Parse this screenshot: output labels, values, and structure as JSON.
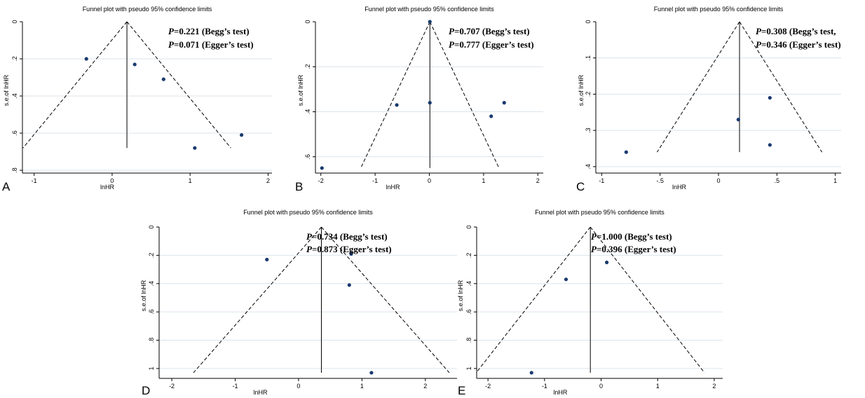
{
  "chart_data": [
    {
      "panel": "A",
      "type": "scatter",
      "title": "Funnel plot with pseudo 95% confidence limits",
      "xlabel": "lnHR",
      "ylabel": "s.e.of lnHR",
      "xlim": [
        -1.15,
        2.05
      ],
      "ylim": [
        0,
        0.8
      ],
      "y_reversed": true,
      "xticks": [
        -1,
        0,
        1,
        2
      ],
      "xtick_labels": [
        "-1",
        "0",
        "1",
        "2"
      ],
      "yticks": [
        0,
        0.2,
        0.4,
        0.6,
        0.8
      ],
      "ytick_labels": [
        "0",
        ".2",
        ".4",
        ".6",
        ".8"
      ],
      "pooled_estimate": 0.19,
      "funnel_se_max": 0.68,
      "points": [
        {
          "x": -0.33,
          "y": 0.2
        },
        {
          "x": 0.29,
          "y": 0.23
        },
        {
          "x": 0.66,
          "y": 0.31
        },
        {
          "x": 1.06,
          "y": 0.68
        },
        {
          "x": 1.66,
          "y": 0.61
        }
      ],
      "annotations": [
        {
          "p": "P",
          "text": "=0.221 (Begg’s test)"
        },
        {
          "p": "P",
          "text": "=0.071 (Egger’s test)"
        }
      ]
    },
    {
      "panel": "B",
      "type": "scatter",
      "title": "Funnel plot with pseudo 95% confidence limits",
      "xlabel": "lnHR",
      "ylabel": "s.e.of lnHR",
      "xlim": [
        -2.1,
        2.1
      ],
      "ylim": [
        0,
        0.66
      ],
      "y_reversed": true,
      "xticks": [
        -2,
        -1,
        0,
        1,
        2
      ],
      "xtick_labels": [
        "-2",
        "-1",
        "0",
        "1",
        "2"
      ],
      "yticks": [
        0,
        0.2,
        0.4,
        0.6
      ],
      "ytick_labels": [
        "0",
        ".2",
        ".4",
        ".6"
      ],
      "pooled_estimate": 0.01,
      "funnel_se_max": 0.65,
      "points": [
        {
          "x": 0.01,
          "y": 0.0
        },
        {
          "x": -0.6,
          "y": 0.37
        },
        {
          "x": 0.01,
          "y": 0.36
        },
        {
          "x": 1.14,
          "y": 0.42
        },
        {
          "x": 1.38,
          "y": 0.36
        },
        {
          "x": -1.98,
          "y": 0.65
        }
      ],
      "annotations": [
        {
          "p": "P",
          "text": "=0.707 (Begg’s test)"
        },
        {
          "p": "P",
          "text": "=0.777 (Egger’s test)"
        }
      ]
    },
    {
      "panel": "C",
      "type": "scatter",
      "title": "Funnel plot with pseudo 95% confidence limits",
      "xlabel": "lnHR",
      "ylabel": "s.e.of lnHR",
      "xlim": [
        -1.05,
        1.05
      ],
      "ylim": [
        0,
        0.41
      ],
      "y_reversed": true,
      "xticks": [
        -1,
        -0.5,
        0,
        0.5,
        1
      ],
      "xtick_labels": [
        "-1",
        "-.5",
        "0",
        ".5",
        "1"
      ],
      "yticks": [
        0,
        0.1,
        0.2,
        0.3,
        0.4
      ],
      "ytick_labels": [
        "0",
        ".1",
        ".2",
        ".3",
        ".4"
      ],
      "pooled_estimate": 0.18,
      "funnel_se_max": 0.36,
      "points": [
        {
          "x": 0.44,
          "y": 0.21
        },
        {
          "x": 0.17,
          "y": 0.27
        },
        {
          "x": 0.44,
          "y": 0.34
        },
        {
          "x": -0.79,
          "y": 0.36
        }
      ],
      "annotations": [
        {
          "p": "P",
          "text": "=0.308 (Begg’s test,"
        },
        {
          "p": "P",
          "text": "=0.346 (Egger’s test)"
        }
      ]
    },
    {
      "panel": "D",
      "type": "scatter",
      "title": "Funnel plot with pseudo 95% confidence limits",
      "xlabel": "lnHR",
      "ylabel": "s.e.of lnHR",
      "xlim": [
        -2.2,
        2.5
      ],
      "ylim": [
        0,
        1.05
      ],
      "y_reversed": true,
      "xticks": [
        -2,
        -1,
        0,
        1,
        2
      ],
      "xtick_labels": [
        "-2",
        "-1",
        "0",
        "1",
        "2"
      ],
      "yticks": [
        0,
        0.2,
        0.4,
        0.6,
        0.8,
        1
      ],
      "ytick_labels": [
        "0",
        ".2",
        ".4",
        ".6",
        ".8",
        "1"
      ],
      "pooled_estimate": 0.36,
      "funnel_se_max": 1.03,
      "points": [
        {
          "x": -0.5,
          "y": 0.23
        },
        {
          "x": 0.83,
          "y": 0.19
        },
        {
          "x": 0.8,
          "y": 0.41
        },
        {
          "x": 1.15,
          "y": 1.03
        }
      ],
      "annotations": [
        {
          "p": "P",
          "text": "=0.734 (Begg’s test)"
        },
        {
          "p": "P",
          "text": "=0.873 (Egger’s test)"
        }
      ]
    },
    {
      "panel": "E",
      "type": "scatter",
      "title": "Funnel plot with pseudo 95% confidence limits",
      "xlabel": "lnHR",
      "ylabel": "s.e.of lnHR",
      "xlim": [
        -2.2,
        2.15
      ],
      "ylim": [
        0,
        1.05
      ],
      "y_reversed": true,
      "xticks": [
        -2,
        -1,
        0,
        1,
        2
      ],
      "xtick_labels": [
        "-2",
        "-1",
        "0",
        "1",
        "2"
      ],
      "yticks": [
        0,
        0.2,
        0.4,
        0.6,
        0.8,
        1
      ],
      "ytick_labels": [
        "0",
        ".2",
        ".4",
        ".6",
        ".8",
        "1"
      ],
      "pooled_estimate": -0.19,
      "funnel_se_max": 1.03,
      "points": [
        {
          "x": 0.1,
          "y": 0.25
        },
        {
          "x": -0.62,
          "y": 0.37
        },
        {
          "x": -1.23,
          "y": 1.03
        }
      ],
      "annotations": [
        {
          "p": "P",
          "text": "=1.000 (Begg’s test)"
        },
        {
          "p": "P",
          "text": "=0.396 (Egger’s test)"
        }
      ]
    }
  ],
  "colors": {
    "point": "#1a3a6e",
    "grid": "#dbe4ec",
    "line": "#000000"
  }
}
